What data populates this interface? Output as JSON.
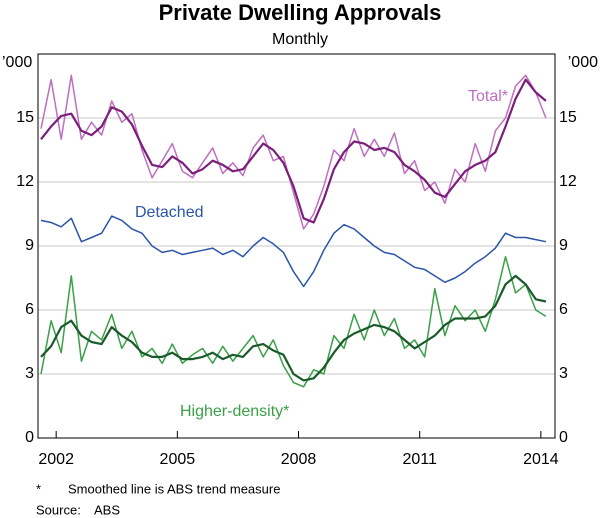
{
  "chart_data": {
    "type": "line",
    "title": "Private Dwelling Approvals",
    "subtitle": "Monthly",
    "y_unit": "’000",
    "footnote": {
      "marker": "*",
      "text": "Smoothed line is ABS trend measure"
    },
    "source": {
      "label": "Source:",
      "text": "ABS"
    },
    "xlim": [
      2001.55,
      2014.35
    ],
    "xticks": [
      2002,
      2005,
      2008,
      2011,
      2014
    ],
    "ylim": [
      0,
      18
    ],
    "yticks": [
      0,
      3,
      6,
      9,
      12,
      15
    ],
    "grid": true,
    "x": [
      2001.625,
      2001.875,
      2002.125,
      2002.375,
      2002.625,
      2002.875,
      2003.125,
      2003.375,
      2003.625,
      2003.875,
      2004.125,
      2004.375,
      2004.625,
      2004.875,
      2005.125,
      2005.375,
      2005.625,
      2005.875,
      2006.125,
      2006.375,
      2006.625,
      2006.875,
      2007.125,
      2007.375,
      2007.625,
      2007.875,
      2008.125,
      2008.375,
      2008.625,
      2008.875,
      2009.125,
      2009.375,
      2009.625,
      2009.875,
      2010.125,
      2010.375,
      2010.625,
      2010.875,
      2011.125,
      2011.375,
      2011.625,
      2011.875,
      2012.125,
      2012.375,
      2012.625,
      2012.875,
      2013.125,
      2013.375,
      2013.625,
      2013.875,
      2014.125
    ],
    "series": [
      {
        "name": "Total*",
        "color": "#bf6fbf",
        "values": [
          14.5,
          16.8,
          14.0,
          17.0,
          14.0,
          14.8,
          14.2,
          15.8,
          14.8,
          15.2,
          13.5,
          12.2,
          13.0,
          13.8,
          12.5,
          12.2,
          12.9,
          13.6,
          12.4,
          12.9,
          12.3,
          13.6,
          14.2,
          13.0,
          13.2,
          11.5,
          9.8,
          10.5,
          11.8,
          13.5,
          13.0,
          14.5,
          13.2,
          14.0,
          13.2,
          14.3,
          12.4,
          13.0,
          11.6,
          12.0,
          11.0,
          12.6,
          12.0,
          13.8,
          12.5,
          14.4,
          15.0,
          16.5,
          17.0,
          16.2,
          15.0
        ]
      },
      {
        "color": "#7a1f7a",
        "values": [
          14.0,
          14.6,
          15.1,
          15.2,
          14.4,
          14.2,
          14.6,
          15.5,
          15.3,
          14.7,
          13.7,
          12.8,
          12.7,
          13.2,
          12.9,
          12.4,
          12.6,
          13.0,
          12.8,
          12.5,
          12.6,
          13.2,
          13.8,
          13.5,
          12.9,
          11.8,
          10.3,
          10.1,
          11.2,
          12.6,
          13.4,
          13.9,
          13.8,
          13.5,
          13.6,
          13.4,
          12.8,
          12.5,
          12.1,
          11.5,
          11.3,
          11.9,
          12.5,
          12.8,
          13.0,
          13.4,
          14.6,
          15.9,
          16.8,
          16.2,
          15.8
        ]
      },
      {
        "name": "Detached",
        "color": "#2a55a8",
        "values": [
          10.2,
          10.1,
          9.9,
          10.3,
          9.2,
          9.4,
          9.6,
          10.4,
          10.2,
          9.8,
          9.6,
          9.0,
          8.7,
          8.8,
          8.6,
          8.7,
          8.8,
          8.9,
          8.6,
          8.8,
          8.5,
          9.0,
          9.4,
          9.1,
          8.7,
          7.8,
          7.1,
          7.8,
          8.8,
          9.6,
          10.0,
          9.8,
          9.4,
          9.0,
          8.7,
          8.6,
          8.3,
          8.0,
          7.9,
          7.6,
          7.3,
          7.5,
          7.8,
          8.2,
          8.5,
          8.9,
          9.6,
          9.4,
          9.4,
          9.3,
          9.2
        ]
      },
      {
        "name": "Higher-density*",
        "color": "#3aa048",
        "values": [
          3.0,
          5.5,
          4.0,
          7.6,
          3.6,
          5.0,
          4.6,
          5.8,
          4.2,
          5.0,
          3.8,
          4.2,
          3.5,
          4.4,
          3.5,
          3.9,
          4.2,
          3.5,
          4.3,
          3.6,
          4.2,
          4.8,
          3.8,
          4.6,
          3.4,
          2.6,
          2.4,
          3.2,
          3.0,
          4.8,
          4.2,
          5.8,
          4.6,
          6.0,
          4.8,
          5.6,
          4.2,
          4.6,
          3.8,
          7.0,
          4.8,
          6.2,
          5.5,
          6.0,
          5.0,
          6.5,
          8.5,
          6.8,
          7.2,
          6.0,
          5.7
        ]
      },
      {
        "color": "#1b5a2b",
        "values": [
          3.8,
          4.3,
          5.2,
          5.5,
          4.8,
          4.5,
          4.4,
          5.2,
          4.8,
          4.5,
          4.0,
          3.8,
          3.8,
          4.0,
          3.7,
          3.7,
          3.8,
          4.0,
          3.7,
          3.9,
          3.8,
          4.3,
          4.4,
          4.1,
          3.9,
          3.0,
          2.7,
          2.8,
          3.3,
          4.0,
          4.6,
          4.9,
          5.1,
          5.3,
          5.2,
          5.0,
          4.6,
          4.2,
          4.5,
          4.8,
          5.3,
          5.6,
          5.6,
          5.6,
          5.7,
          6.2,
          7.2,
          7.6,
          7.2,
          6.5,
          6.4
        ]
      }
    ]
  }
}
